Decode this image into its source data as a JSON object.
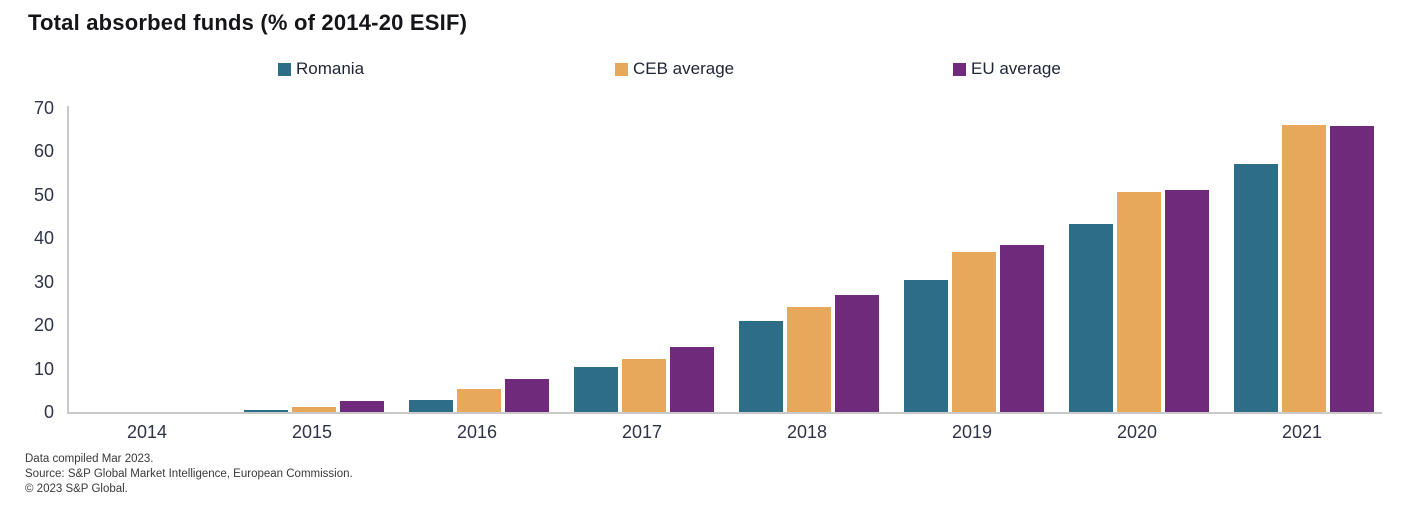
{
  "title": "Total absorbed funds (% of 2014-20 ESIF)",
  "chart_data": {
    "type": "bar",
    "title": "Total absorbed funds (% of 2014-20 ESIF)",
    "categories": [
      "2014",
      "2015",
      "2016",
      "2017",
      "2018",
      "2019",
      "2020",
      "2021"
    ],
    "series": [
      {
        "name": "Romania",
        "color": "#2e6d88",
        "values": [
          0,
          0.4,
          2.8,
          10.3,
          21.0,
          30.3,
          43.2,
          57.2
        ]
      },
      {
        "name": "CEB average",
        "color": "#e8a85c",
        "values": [
          0,
          1.2,
          5.4,
          12.2,
          24.2,
          36.8,
          50.6,
          66.2
        ]
      },
      {
        "name": "EU average",
        "color": "#702a7c",
        "values": [
          0,
          2.6,
          7.6,
          14.9,
          27.0,
          38.4,
          51.2,
          65.8
        ]
      }
    ],
    "xlabel": "",
    "ylabel": "",
    "ylim": [
      0,
      70
    ],
    "yticks": [
      0,
      10,
      20,
      30,
      40,
      50,
      60,
      70
    ],
    "grid": false,
    "legend_position": "top"
  },
  "footer": {
    "line1": "Data compiled Mar 2023.",
    "line2": "Source: S&P Global Market Intelligence, European Commission.",
    "line3": "© 2023 S&P Global."
  }
}
